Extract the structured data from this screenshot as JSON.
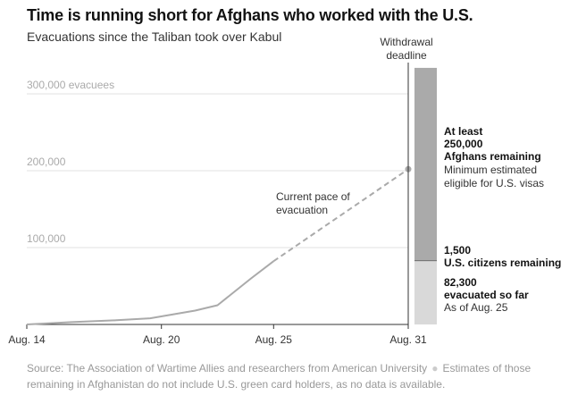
{
  "title": "Time is running short for Afghans who worked with the U.S.",
  "subtitle": "Evacuations since the Taliban took over Kabul",
  "source": {
    "text": "Source: The Association of Wartime Allies and researchers from American University",
    "note": "Estimates of those remaining in Afghanistan do not include U.S. green card holders, as no data is available."
  },
  "chart_data": {
    "type": "line",
    "title": "Time is running short for Afghans who worked with the U.S.",
    "subtitle": "Evacuations since the Taliban took over Kabul",
    "xlabel": "",
    "ylabel": "",
    "xlim": [
      14,
      31
    ],
    "ylim": [
      0,
      320000
    ],
    "grid": true,
    "x_ticks": [
      {
        "day": 14,
        "label": "Aug. 14"
      },
      {
        "day": 20,
        "label": "Aug. 20"
      },
      {
        "day": 25,
        "label": "Aug. 25"
      },
      {
        "day": 31,
        "label": "Aug. 31"
      }
    ],
    "y_ticks": [
      {
        "value": 100000,
        "label": "100,000"
      },
      {
        "value": 200000,
        "label": "200,000"
      },
      {
        "value": 300000,
        "label": "300,000 evacuees"
      }
    ],
    "series": [
      {
        "name": "",
        "style": "solid",
        "color": "#aaaaaa",
        "x": [
          14,
          16,
          18,
          19.5,
          21.5,
          22.5,
          24,
          25
        ],
        "y": [
          0,
          3000,
          5500,
          8000,
          18000,
          25000,
          60000,
          82300
        ]
      },
      {
        "name": "Current pace of evacuation",
        "style": "dashed",
        "color": "#aaaaaa",
        "x": [
          25,
          31
        ],
        "y": [
          82300,
          202000
        ]
      }
    ],
    "annotations": {
      "pace_label": [
        "Current pace of",
        "evacuation"
      ],
      "deadline_label": [
        "Withdrawal",
        "deadline"
      ],
      "deadline_day": 31
    },
    "stacked_bar": {
      "segments": [
        {
          "value": 82300,
          "color": "#d9d9d9",
          "label_bold": "82,300",
          "label_bold2": "evacuated so far",
          "label_note": "As of Aug. 25"
        },
        {
          "value": 1500,
          "color": "#777777",
          "label_bold": "1,500",
          "label_bold2": "U.S. citizens remaining",
          "label_note": ""
        },
        {
          "value": 250000,
          "color": "#aaaaaa",
          "label_bold": "At least",
          "label_bold2": "250,000",
          "label_bold3": "Afghans remaining",
          "label_note": "Minimum estimated",
          "label_note2": "eligible for U.S. visas"
        }
      ]
    }
  }
}
